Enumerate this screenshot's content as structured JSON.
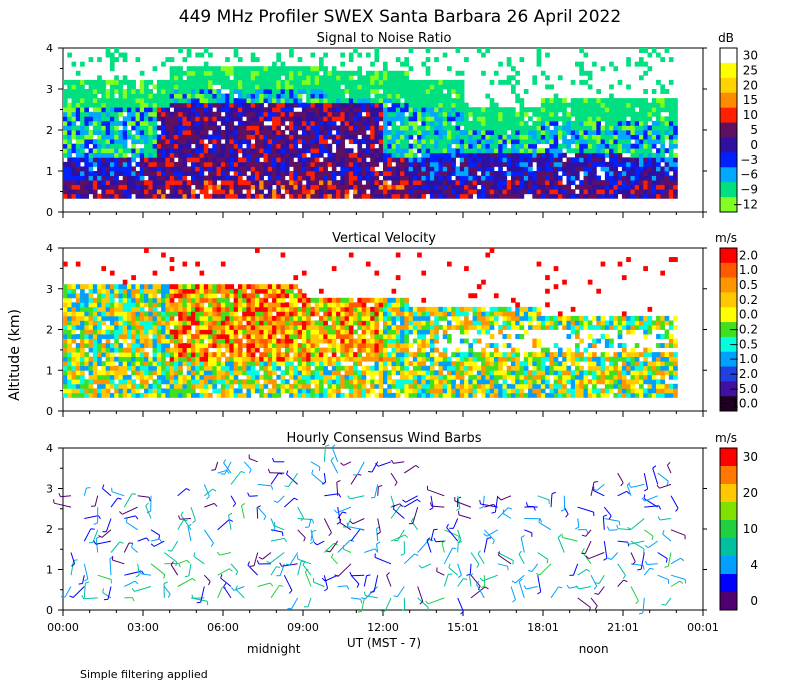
{
  "chart_data": {
    "type": "heatmap",
    "title": "449 MHz Profiler SWEX Santa Barbara 26 April 2022",
    "ylabel": "Altitude (km)",
    "xlabel": "UT  (MST - 7)",
    "x_ticks": [
      "00:00",
      "03:00",
      "06:00",
      "09:00",
      "12:00",
      "15:01",
      "18:01",
      "21:01",
      "00:01"
    ],
    "x_tick_hours": [
      0,
      3,
      6,
      9,
      12,
      15,
      18,
      21,
      24
    ],
    "x_annotations": [
      {
        "label": "midnight",
        "hour": 7.9
      },
      {
        "label": "noon",
        "hour": 19.9
      }
    ],
    "ylim": [
      0,
      4
    ],
    "y_ticks": [
      0,
      1,
      2,
      3,
      4
    ],
    "panels": [
      {
        "title": "Signal to Noise Ratio",
        "unit": "dB",
        "colorbar": [
          {
            "label": "30",
            "color": "#ffffff"
          },
          {
            "label": "25",
            "color": "#ffff00"
          },
          {
            "label": "20",
            "color": "#ffd200"
          },
          {
            "label": "15",
            "color": "#ff8c00"
          },
          {
            "label": "10",
            "color": "#ff2000"
          },
          {
            "label": "5",
            "color": "#601060"
          },
          {
            "label": "0",
            "color": "#3010a0"
          },
          {
            "label": "−3",
            "color": "#0020ff"
          },
          {
            "label": "−6",
            "color": "#00a8ff"
          },
          {
            "label": "−9",
            "color": "#00e080"
          },
          {
            "label": "−12",
            "color": "#80ff20"
          }
        ]
      },
      {
        "title": "Vertical Velocity",
        "unit": "m/s",
        "colorbar": [
          {
            "label": "2.0",
            "color": "#ff0000"
          },
          {
            "label": "1.0",
            "color": "#ff5a00"
          },
          {
            "label": "0.5",
            "color": "#ff9600"
          },
          {
            "label": "0.2",
            "color": "#ffc800"
          },
          {
            "label": "0.0",
            "color": "#ffff00"
          },
          {
            "label": "−0.2",
            "color": "#40e020"
          },
          {
            "label": "−0.5",
            "color": "#00ffe0"
          },
          {
            "label": "−1.0",
            "color": "#00a0ff"
          },
          {
            "label": "−2.0",
            "color": "#2040e0"
          },
          {
            "label": "−5.0",
            "color": "#4010a0"
          },
          {
            "label": "−10.0",
            "color": "#200020"
          }
        ]
      },
      {
        "title": "Hourly Consensus Wind Barbs",
        "unit": "m/s",
        "colorbar": [
          {
            "label": "30",
            "color": "#ff0000"
          },
          {
            "label": "",
            "color": "#ff7800"
          },
          {
            "label": "20",
            "color": "#ffc800"
          },
          {
            "label": "",
            "color": "#80e000"
          },
          {
            "label": "10",
            "color": "#20d040"
          },
          {
            "label": "",
            "color": "#00c0a0"
          },
          {
            "label": "4",
            "color": "#00a0ff"
          },
          {
            "label": "",
            "color": "#0000ff"
          },
          {
            "label": "0",
            "color": "#500070"
          }
        ]
      }
    ]
  },
  "footnote": "Simple filtering applied"
}
